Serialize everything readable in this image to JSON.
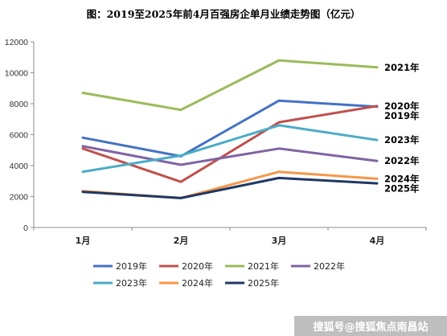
{
  "chart_data": {
    "type": "line",
    "title": "图：2019至2025年前4月百强房企单月业绩走势图（亿元）",
    "categories": [
      "1月",
      "2月",
      "3月",
      "4月"
    ],
    "ylim": [
      0,
      12000
    ],
    "yticks": [
      0,
      2000,
      4000,
      6000,
      8000,
      10000,
      12000
    ],
    "grid": false,
    "legend_position": "bottom",
    "series": [
      {
        "name": "2019年",
        "color": "#4472c4",
        "values": [
          5800,
          4600,
          8200,
          7800
        ]
      },
      {
        "name": "2020年",
        "color": "#c0504d",
        "values": [
          5100,
          2950,
          6800,
          7850
        ]
      },
      {
        "name": "2021年",
        "color": "#9bbb59",
        "values": [
          8700,
          7600,
          10800,
          10350
        ]
      },
      {
        "name": "2022年",
        "color": "#8064a2",
        "values": [
          5250,
          4050,
          5100,
          4300
        ]
      },
      {
        "name": "2023年",
        "color": "#4bacc6",
        "values": [
          3600,
          4650,
          6600,
          5650
        ]
      },
      {
        "name": "2024年",
        "color": "#f79646",
        "values": [
          2350,
          1900,
          3600,
          3150
        ]
      },
      {
        "name": "2025年",
        "color": "#1f3864",
        "values": [
          2300,
          1900,
          3200,
          2850
        ]
      }
    ]
  },
  "watermark": "搜狐号@搜狐焦点南昌站"
}
